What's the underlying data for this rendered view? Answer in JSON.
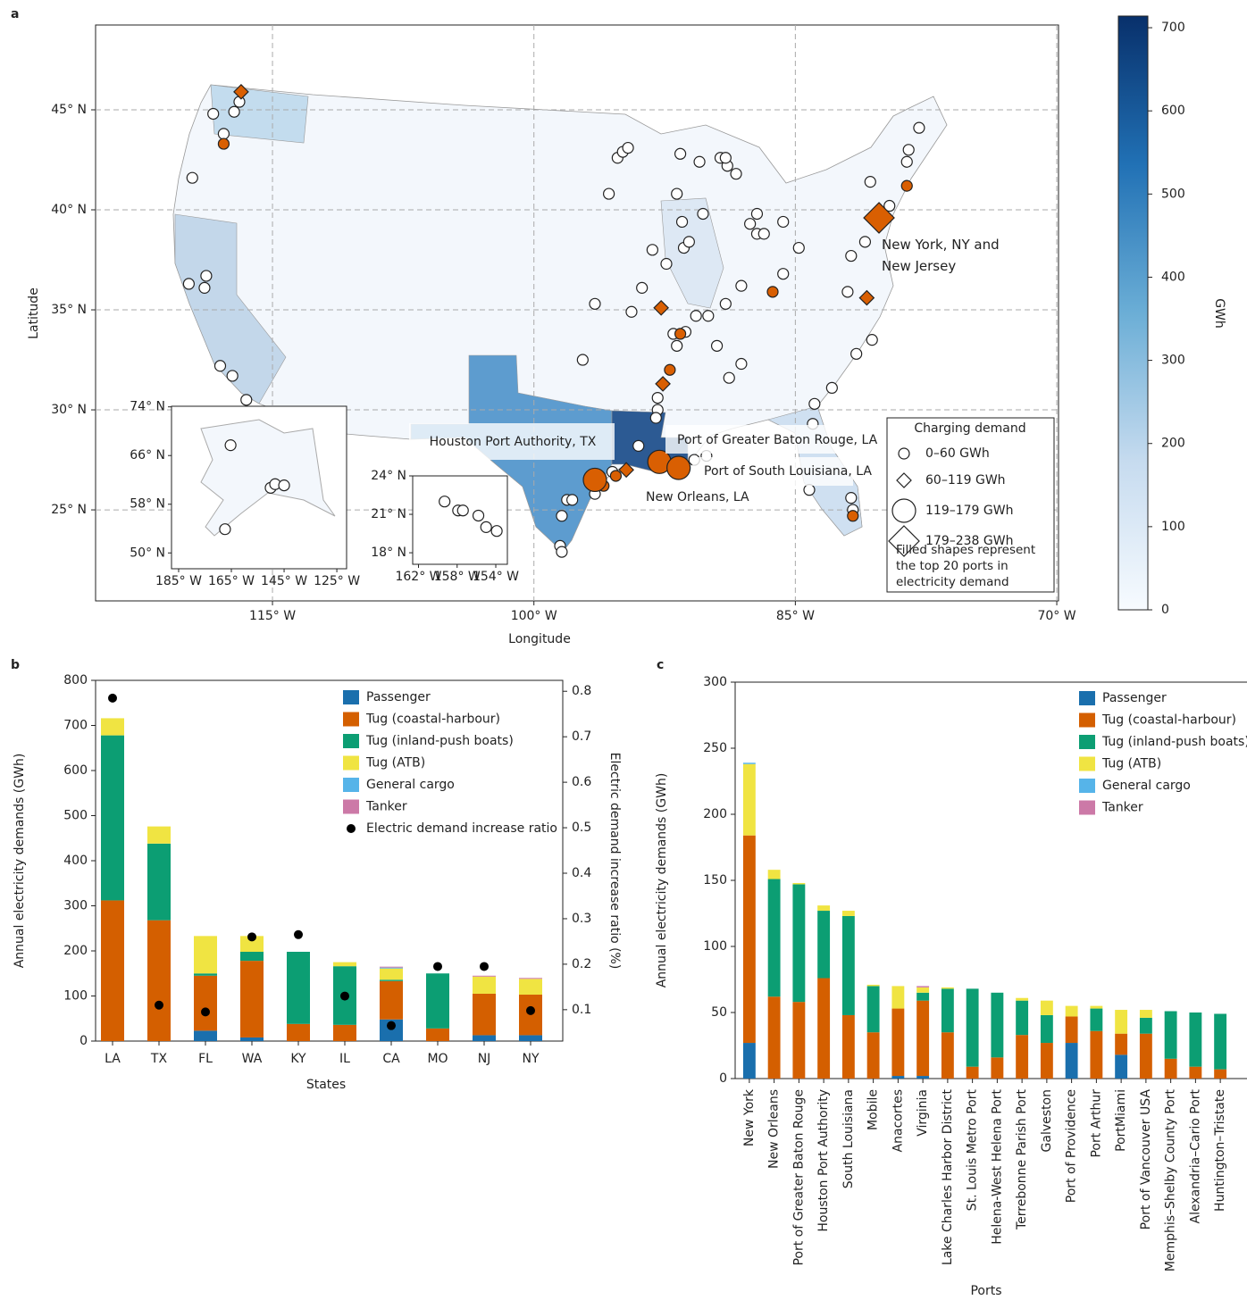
{
  "chart_data": [
    {
      "type": "map",
      "panel": "a",
      "xlabel": "Longitude",
      "ylabel": "Latitude",
      "xlim": [
        -125.15,
        -69.9
      ],
      "ylim": [
        20.45,
        49.24
      ],
      "xticks": [
        {
          "value": -115,
          "label": "115° W"
        },
        {
          "value": -100,
          "label": "100° W"
        },
        {
          "value": -85,
          "label": "85° W"
        },
        {
          "value": -70,
          "label": "70° W"
        }
      ],
      "yticks": [
        {
          "value": 45,
          "label": "45° N"
        },
        {
          "value": 40,
          "label": "40° N"
        },
        {
          "value": 35,
          "label": "35° N"
        },
        {
          "value": 30,
          "label": "30° N"
        },
        {
          "value": 25,
          "label": "25° N"
        }
      ],
      "grid": true,
      "legend_title": "Charging demand",
      "legend_note": "Filled shapes represent the top 20 ports in electricity demand",
      "annotations": [
        "Houston Port Authority, TX",
        "Port of Greater Baton Rouge, LA",
        "Port of South Louisiana, LA",
        "New Orleans, LA",
        "New York, NY and New Jersey"
      ],
      "series": [
        {
          "name": "0–60 GWh",
          "marker": "circle",
          "color": "#d95f02",
          "x": [
            -118.4,
            -117.8,
            -119.6,
            -117.2,
            -116.9,
            -119.8,
            -118.8,
            -118.9,
            -118.0,
            -117.3,
            -116.5,
            -97.2,
            -96.5,
            -98.4,
            -98.1,
            -98.5,
            -98.4,
            -97.8,
            -96.5,
            -95.5,
            -94.0,
            -92.9,
            -92.9,
            -93.0,
            -91.8,
            -92.0,
            -91.3,
            -90.7,
            -90.0,
            -89.5,
            -88.1,
            -88.8,
            -94.4,
            -93.8,
            -93.2,
            -92.4,
            -91.4,
            -91.1,
            -91.5,
            -91.8,
            -91.6,
            -95.2,
            -94.9,
            -94.6,
            -95.7,
            -90.5,
            -89.3,
            -88.9,
            -88.4,
            -89.0,
            -90.3,
            -87.6,
            -87.2,
            -87.2,
            -86.8,
            -85.7,
            -84.8,
            -88.1,
            -85.7,
            -80.7,
            -78.5,
            -77.9,
            -78.6,
            -79.6,
            -81.0,
            -81.8,
            -82.0,
            -80.6,
            -81.5,
            -82.9,
            -83.9,
            -84.0,
            -84.2,
            -81.8,
            -81.7,
            -89.0,
            -90.8,
            -90.1,
            -117.8,
            -78.6,
            -86.3,
            -91.6,
            -92.2,
            -95.3,
            -81.7,
            -96.0
          ],
          "y": [
            44.8,
            43.8,
            41.6,
            44.9,
            45.4,
            36.3,
            36.7,
            36.1,
            32.2,
            31.7,
            30.5,
            32.5,
            35.3,
            24.7,
            25.5,
            23.2,
            22.9,
            25.5,
            25.8,
            26.9,
            28.2,
            30.0,
            30.6,
            29.6,
            33.2,
            33.8,
            33.9,
            34.7,
            34.7,
            33.2,
            32.3,
            31.6,
            34.9,
            36.1,
            38.0,
            37.3,
            38.1,
            38.4,
            39.4,
            40.8,
            42.8,
            42.6,
            42.9,
            43.1,
            40.8,
            42.4,
            42.6,
            42.2,
            41.8,
            42.6,
            39.8,
            39.3,
            39.8,
            38.8,
            38.8,
            39.4,
            38.1,
            36.2,
            36.8,
            41.4,
            43.0,
            44.1,
            42.4,
            40.2,
            38.4,
            37.7,
            35.9,
            33.5,
            32.8,
            31.1,
            30.3,
            29.3,
            26.0,
            25.6,
            25.0,
            35.3,
            27.5,
            27.7,
            43.3,
            41.2,
            35.9,
            33.8,
            32.0,
            26.7,
            24.7,
            26.2
          ],
          "filled": [
            false,
            false,
            false,
            false,
            false,
            false,
            false,
            false,
            false,
            false,
            false,
            false,
            false,
            false,
            false,
            false,
            false,
            false,
            false,
            false,
            false,
            false,
            false,
            false,
            false,
            false,
            false,
            false,
            false,
            false,
            false,
            false,
            false,
            false,
            false,
            false,
            false,
            false,
            false,
            false,
            false,
            false,
            false,
            false,
            false,
            false,
            false,
            false,
            false,
            false,
            false,
            false,
            false,
            false,
            false,
            false,
            false,
            false,
            false,
            false,
            false,
            false,
            false,
            false,
            false,
            false,
            false,
            false,
            false,
            false,
            false,
            false,
            false,
            false,
            false,
            false,
            false,
            false,
            true,
            true,
            true,
            true,
            true,
            true,
            true,
            true
          ]
        },
        {
          "name": "60–119 GWh",
          "marker": "diamond",
          "color": "#d95f02",
          "x": [
            -116.8,
            -92.7,
            -92.6,
            -94.7,
            -80.9
          ],
          "y": [
            45.9,
            35.1,
            31.3,
            27.0,
            35.6
          ],
          "filled": [
            true,
            true,
            true,
            true,
            true
          ]
        },
        {
          "name": "119–179 GWh",
          "marker": "circle",
          "color": "#d95f02",
          "x": [
            -96.5,
            -92.8,
            -91.7
          ],
          "y": [
            26.5,
            27.4,
            27.1
          ],
          "filled": [
            true,
            true,
            true
          ]
        },
        {
          "name": "179–238 GWh",
          "marker": "diamond",
          "color": "#d95f02",
          "x": [
            -80.2
          ],
          "y": [
            39.6
          ],
          "filled": [
            true
          ]
        }
      ],
      "insets": [
        {
          "xlim": [
            -187.7,
            -121.3
          ],
          "ylim": [
            47.4,
            74.1
          ],
          "xticks": [
            {
              "value": -185,
              "label": "185° W"
            },
            {
              "value": -165,
              "label": "165° W"
            },
            {
              "value": -145,
              "label": "145° W"
            },
            {
              "value": -125,
              "label": "125° W"
            }
          ],
          "yticks": [
            {
              "value": 74,
              "label": "74° N"
            },
            {
              "value": 66,
              "label": "66° N"
            },
            {
              "value": 58,
              "label": "58° N"
            },
            {
              "value": 50,
              "label": "50° N"
            }
          ],
          "x": [
            -165.3,
            -150.1,
            -148.4,
            -145.0,
            -167.4
          ],
          "y": [
            67.7,
            60.7,
            61.3,
            61.1,
            53.9
          ]
        },
        {
          "xlim": [
            -162.6,
            -152.8
          ],
          "ylim": [
            17.1,
            24.0
          ],
          "xticks": [
            {
              "value": -162,
              "label": "162° W"
            },
            {
              "value": -158,
              "label": "158° W"
            },
            {
              "value": -154,
              "label": "154° W"
            }
          ],
          "yticks": [
            {
              "value": 24,
              "label": "24° N"
            },
            {
              "value": 21,
              "label": "21° N"
            },
            {
              "value": 18,
              "label": "18° N"
            }
          ],
          "x": [
            -159.3,
            -157.9,
            -157.4,
            -155.8,
            -155.0,
            -153.9
          ],
          "y": [
            22.0,
            21.3,
            21.3,
            20.9,
            20.0,
            19.7
          ]
        }
      ],
      "colorbar": {
        "label": "GWh",
        "lim": [
          0,
          714
        ],
        "ticks": [
          0,
          100,
          200,
          300,
          400,
          500,
          600,
          700
        ],
        "colors": [
          "#f7fbff",
          "#c6dbef",
          "#6baed6",
          "#2171b5",
          "#08306b"
        ]
      }
    },
    {
      "type": "bar",
      "panel": "b",
      "stacked": true,
      "xlabel": "States",
      "ylabel": "Annual electricity demands (GWh)",
      "y2label": "Electric demand increase ratio (%)",
      "categories": [
        "LA",
        "TX",
        "FL",
        "WA",
        "KY",
        "IL",
        "CA",
        "MO",
        "NJ",
        "NY"
      ],
      "ylim": [
        0,
        800
      ],
      "yticks": [
        0,
        100,
        200,
        300,
        400,
        500,
        600,
        700,
        800
      ],
      "y2lim": [
        0.031,
        0.824
      ],
      "y2ticks": [
        0.1,
        0.2,
        0.3,
        0.4,
        0.5,
        0.6,
        0.7,
        0.8
      ],
      "series": [
        {
          "name": "Passenger",
          "color": "#1a6fad",
          "values": [
            0,
            0,
            23,
            8,
            0,
            0,
            48,
            0,
            13,
            13
          ]
        },
        {
          "name": "Tug (coastal-harbour)",
          "color": "#d45f00",
          "values": [
            312,
            268,
            122,
            170,
            38,
            36,
            85,
            28,
            92,
            90
          ]
        },
        {
          "name": "Tug (inland-push boats)",
          "color": "#0c9e73",
          "values": [
            366,
            170,
            5,
            20,
            160,
            130,
            3,
            122,
            0,
            0
          ]
        },
        {
          "name": "Tug (ATB)",
          "color": "#f0e442",
          "values": [
            38,
            38,
            83,
            35,
            0,
            9,
            25,
            0,
            38,
            35
          ]
        },
        {
          "name": "General cargo",
          "color": "#56b4e9",
          "values": [
            0,
            0,
            0,
            0,
            0,
            0,
            2,
            0,
            0,
            0
          ]
        },
        {
          "name": "Tanker",
          "color": "#cc79a7",
          "values": [
            0,
            0,
            0,
            0,
            0,
            0,
            2,
            0,
            2,
            2
          ]
        },
        {
          "name": "Electric demand increase ratio",
          "color": "#000000",
          "axis": "y2",
          "values": [
            0.785,
            0.11,
            0.095,
            0.26,
            0.265,
            0.13,
            0.065,
            0.195,
            0.195,
            0.098
          ]
        }
      ]
    },
    {
      "type": "bar",
      "panel": "c",
      "stacked": true,
      "xlabel": "Ports",
      "ylabel": "Annual electricity demands (GWh)",
      "categories": [
        "New York",
        "New Orleans",
        "Port of Greater Baton Rouge",
        "Houston Port Authority",
        "South Louisiana",
        "Mobile",
        "Anacortes",
        "Virginia",
        "Lake Charles Harbor District",
        "St. Louis Metro Port",
        "Helena-West Helena Port",
        "Terrebonne Parish Port",
        "Galveston",
        "Port of Providence",
        "Port Arthur",
        "PortMiami",
        "Port of Vancouver USA",
        "Memphis–Shelby County Port",
        "Alexandria–Cario Port",
        "Huntington–Tristate"
      ],
      "ylim": [
        0,
        300
      ],
      "yticks": [
        0,
        50,
        100,
        150,
        200,
        250,
        300
      ],
      "series": [
        {
          "name": "Passenger",
          "color": "#1a6fad",
          "values": [
            27,
            0,
            0,
            0,
            0,
            0,
            2,
            2,
            0,
            0,
            0,
            0,
            0,
            27,
            0,
            18,
            0,
            0,
            0,
            0
          ]
        },
        {
          "name": "Tug (coastal-harbour)",
          "color": "#d45f00",
          "values": [
            157,
            62,
            58,
            76,
            48,
            35,
            51,
            57,
            35,
            9,
            16,
            33,
            27,
            20,
            36,
            16,
            34,
            15,
            9,
            7
          ]
        },
        {
          "name": "Tug (inland-push boats)",
          "color": "#0c9e73",
          "values": [
            0,
            89,
            89,
            51,
            75,
            35,
            0,
            6,
            33,
            59,
            49,
            26,
            21,
            0,
            17,
            0,
            12,
            36,
            41,
            42
          ]
        },
        {
          "name": "Tug (ATB)",
          "color": "#f0e442",
          "values": [
            54,
            7,
            1,
            4,
            4,
            1,
            17,
            4,
            1,
            0,
            0,
            2,
            11,
            8,
            2,
            18,
            6,
            0,
            0,
            0
          ]
        },
        {
          "name": "General cargo",
          "color": "#56b4e9",
          "values": [
            1,
            0,
            0,
            0,
            0,
            0,
            0,
            0,
            0,
            0,
            0,
            0,
            0,
            0,
            0,
            0,
            0,
            0,
            0,
            0
          ]
        },
        {
          "name": "Tanker",
          "color": "#cc79a7",
          "values": [
            0,
            0,
            0,
            0,
            0,
            0,
            0,
            1,
            0,
            0,
            0,
            0,
            0,
            0,
            0,
            0,
            0,
            0,
            0,
            0
          ]
        }
      ]
    }
  ]
}
